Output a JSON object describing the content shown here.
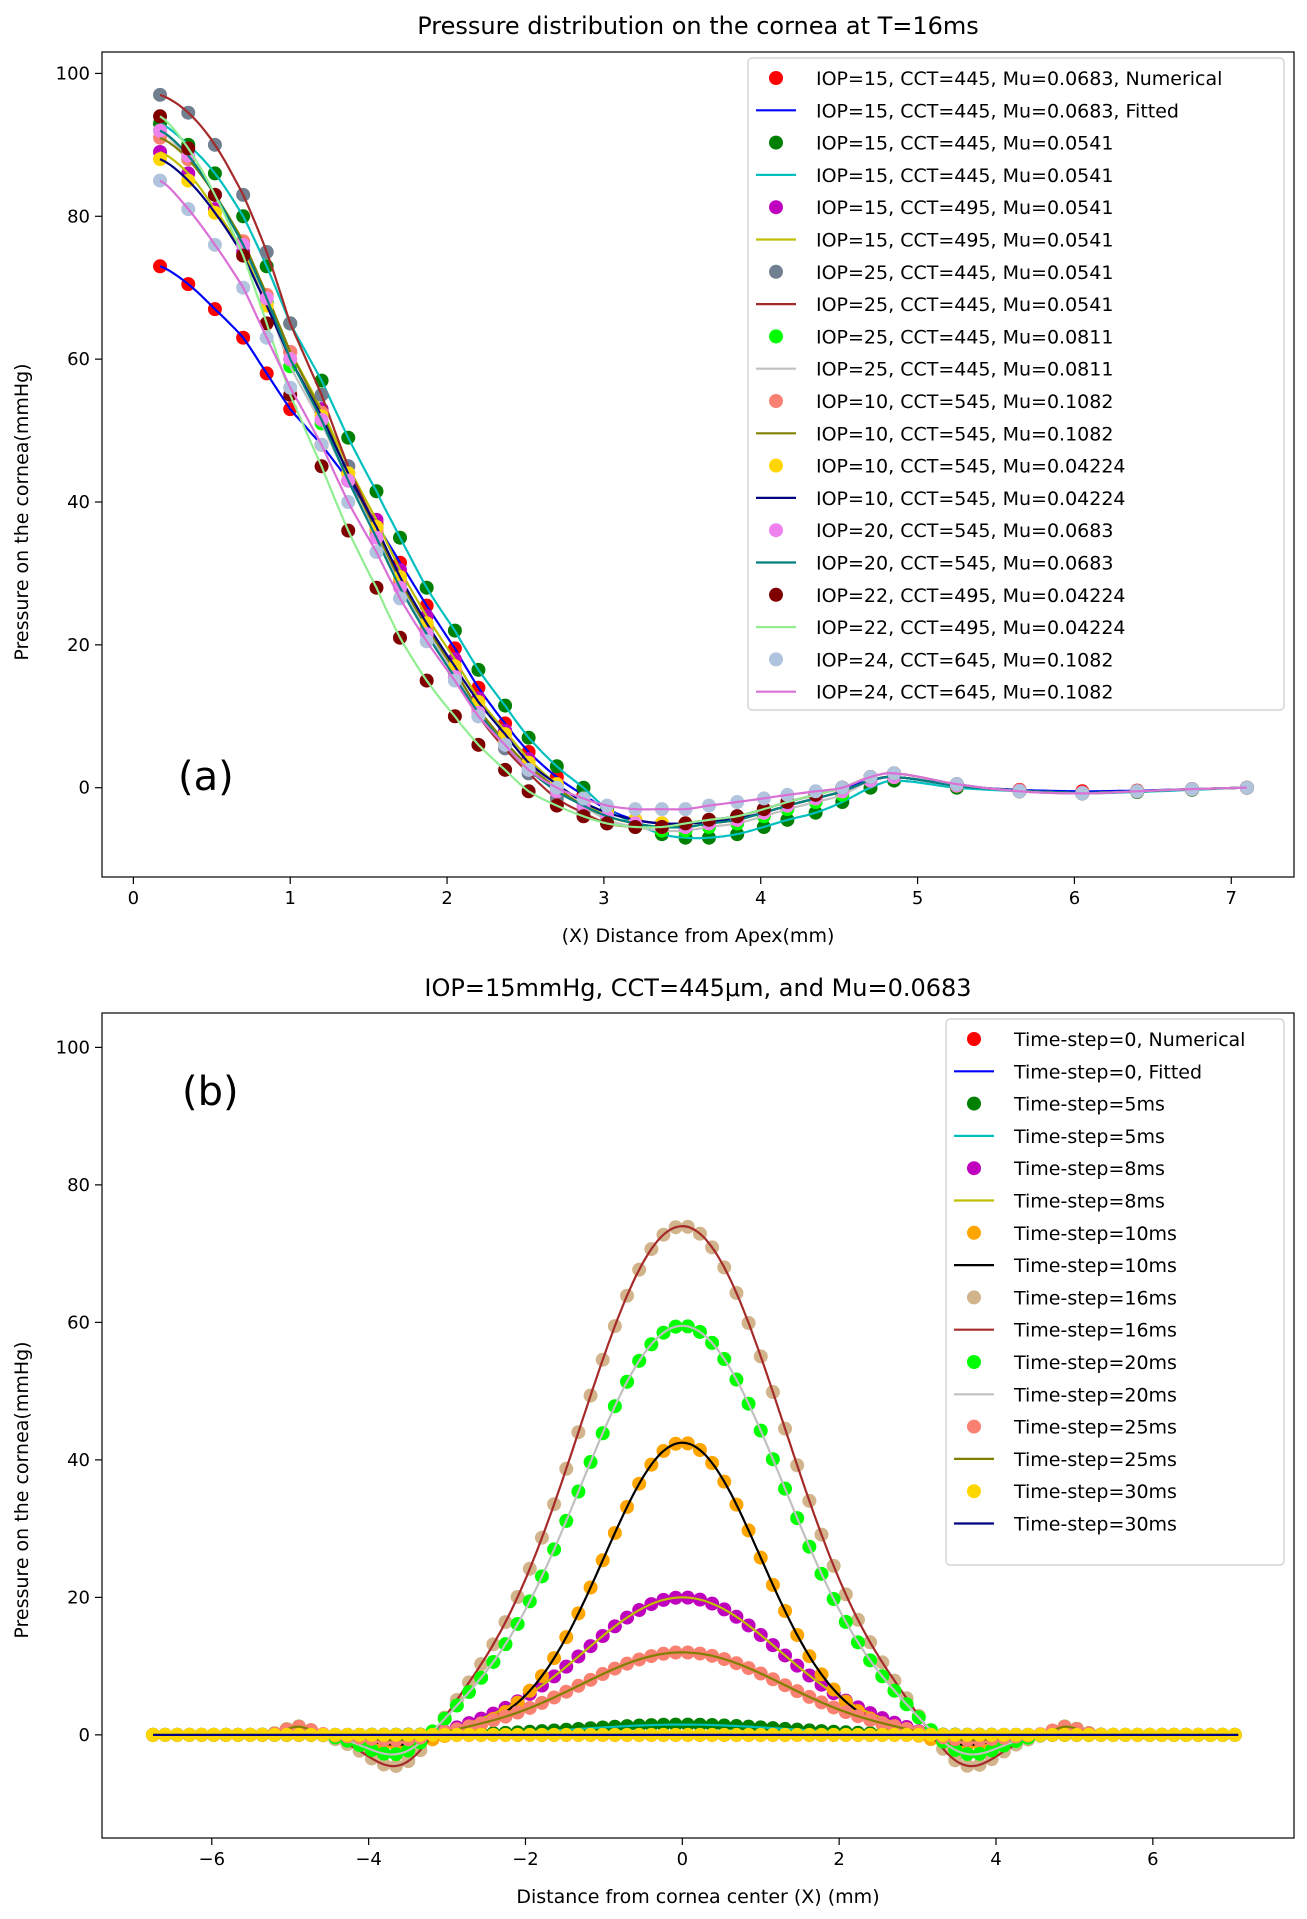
{
  "chart_data": [
    {
      "type": "scatter",
      "panel_label": "(a)",
      "title": "Pressure distribution on the cornea at T=16ms",
      "xlabel": "(X) Distance from Apex(mm)",
      "ylabel": "Pressure on the cornea(mmHg)",
      "xlim": [
        -0.2,
        7.4
      ],
      "ylim": [
        -12.5,
        103
      ],
      "xticks": [
        0,
        1,
        2,
        3,
        4,
        5,
        6,
        7
      ],
      "yticks": [
        0,
        20,
        40,
        60,
        80,
        100
      ],
      "legend_position": "top-right",
      "legend": [
        {
          "label": "IOP=15, CCT=445, Mu=0.0683, Numerical",
          "kind": "marker",
          "color": "#ff0000"
        },
        {
          "label": "IOP=15, CCT=445, Mu=0.0683, Fitted",
          "kind": "line",
          "color": "#0000ff"
        },
        {
          "label": "IOP=15, CCT=445, Mu=0.0541",
          "kind": "marker",
          "color": "#008000"
        },
        {
          "label": "IOP=15, CCT=445, Mu=0.0541",
          "kind": "line",
          "color": "#00bfbf"
        },
        {
          "label": "IOP=15, CCT=495, Mu=0.0541",
          "kind": "marker",
          "color": "#bf00bf"
        },
        {
          "label": "IOP=15, CCT=495, Mu=0.0541",
          "kind": "line",
          "color": "#bfbf00"
        },
        {
          "label": "IOP=25, CCT=445, Mu=0.0541",
          "kind": "marker",
          "color": "#708090"
        },
        {
          "label": "IOP=25, CCT=445, Mu=0.0541",
          "kind": "line",
          "color": "#a52a2a"
        },
        {
          "label": "IOP=25, CCT=445, Mu=0.0811",
          "kind": "marker",
          "color": "#00ff00"
        },
        {
          "label": "IOP=25, CCT=445, Mu=0.0811",
          "kind": "line",
          "color": "#c0c0c0"
        },
        {
          "label": "IOP=10, CCT=545, Mu=0.1082",
          "kind": "marker",
          "color": "#fa8072"
        },
        {
          "label": "IOP=10, CCT=545, Mu=0.1082",
          "kind": "line",
          "color": "#808000"
        },
        {
          "label": "IOP=10, CCT=545, Mu=0.04224",
          "kind": "marker",
          "color": "#ffd700"
        },
        {
          "label": "IOP=10, CCT=545, Mu=0.04224",
          "kind": "line",
          "color": "#000080"
        },
        {
          "label": "IOP=20, CCT=545, Mu=0.0683",
          "kind": "marker",
          "color": "#ee82ee"
        },
        {
          "label": "IOP=20, CCT=545, Mu=0.0683",
          "kind": "line",
          "color": "#008080"
        },
        {
          "label": "IOP=22, CCT=495, Mu=0.04224",
          "kind": "marker",
          "color": "#800000"
        },
        {
          "label": "IOP=22, CCT=495, Mu=0.04224",
          "kind": "line",
          "color": "#90ee90"
        },
        {
          "label": "IOP=24, CCT=645, Mu=0.1082",
          "kind": "marker",
          "color": "#b0c4de"
        },
        {
          "label": "IOP=24, CCT=645, Mu=0.1082",
          "kind": "line",
          "color": "#da70d6"
        }
      ],
      "x": [
        0.17,
        0.35,
        0.52,
        0.7,
        0.85,
        1.0,
        1.2,
        1.37,
        1.55,
        1.7,
        1.87,
        2.05,
        2.2,
        2.37,
        2.52,
        2.7,
        2.87,
        3.02,
        3.2,
        3.37,
        3.52,
        3.67,
        3.85,
        4.02,
        4.17,
        4.35,
        4.52,
        4.7,
        4.85,
        5.25,
        5.65,
        6.05,
        6.4,
        6.75,
        7.1
      ],
      "series": [
        {
          "name": "IOP=15, CCT=445, Mu=0.0683",
          "marker_color": "#ff0000",
          "line_color": "#0000ff",
          "values": [
            73.0,
            70.5,
            67.0,
            63.0,
            58.0,
            53.0,
            48.0,
            43.0,
            37.0,
            31.5,
            25.5,
            19.5,
            14.0,
            9.0,
            5.0,
            1.5,
            -1.0,
            -3.0,
            -4.5,
            -5.0,
            -5.0,
            -4.5,
            -4.0,
            -3.0,
            -2.0,
            -1.0,
            0.0,
            1.0,
            1.5,
            0.3,
            -0.3,
            -0.5,
            -0.4,
            -0.2,
            0.0
          ]
        },
        {
          "name": "IOP=15, CCT=445, Mu=0.0541",
          "marker_color": "#008000",
          "line_color": "#00bfbf",
          "values": [
            93.0,
            90.0,
            86.0,
            80.0,
            73.0,
            65.0,
            57.0,
            49.0,
            41.5,
            35.0,
            28.0,
            22.0,
            16.5,
            11.5,
            7.0,
            3.0,
            0.0,
            -3.0,
            -5.0,
            -6.5,
            -7.0,
            -7.0,
            -6.5,
            -5.5,
            -4.5,
            -3.5,
            -2.0,
            0.0,
            1.0,
            0.0,
            -0.5,
            -0.8,
            -0.6,
            -0.3,
            0.0
          ]
        },
        {
          "name": "IOP=15, CCT=495, Mu=0.0541",
          "marker_color": "#bf00bf",
          "line_color": "#bfbf00",
          "values": [
            89.0,
            86.0,
            81.0,
            75.0,
            68.0,
            61.0,
            53.0,
            45.0,
            37.5,
            30.5,
            24.0,
            18.0,
            12.5,
            8.0,
            4.0,
            0.5,
            -2.0,
            -4.0,
            -5.0,
            -5.5,
            -5.5,
            -5.0,
            -4.5,
            -3.5,
            -2.5,
            -1.5,
            -0.5,
            1.0,
            1.5,
            0.3,
            -0.4,
            -0.7,
            -0.5,
            -0.2,
            0.0
          ]
        },
        {
          "name": "IOP=25, CCT=445, Mu=0.0541",
          "marker_color": "#708090",
          "line_color": "#a52a2a",
          "values": [
            97.0,
            94.5,
            90.0,
            83.0,
            75.0,
            65.0,
            55.0,
            45.0,
            36.5,
            29.0,
            22.0,
            15.5,
            10.0,
            5.5,
            2.0,
            -1.5,
            -3.5,
            -5.0,
            -5.5,
            -5.5,
            -5.0,
            -4.5,
            -4.0,
            -3.0,
            -2.0,
            -1.0,
            0.0,
            1.5,
            2.0,
            0.5,
            -0.5,
            -0.8,
            -0.5,
            -0.2,
            0.0
          ]
        },
        {
          "name": "IOP=25, CCT=445, Mu=0.0811",
          "marker_color": "#00ff00",
          "line_color": "#c0c0c0",
          "values": [
            92.0,
            88.0,
            83.0,
            76.0,
            68.0,
            59.0,
            51.0,
            43.0,
            35.5,
            28.5,
            22.0,
            16.0,
            11.0,
            6.5,
            3.0,
            0.0,
            -2.5,
            -4.5,
            -5.5,
            -6.0,
            -6.0,
            -5.5,
            -5.0,
            -4.0,
            -3.0,
            -2.0,
            -1.0,
            1.0,
            1.5,
            0.3,
            -0.4,
            -0.7,
            -0.5,
            -0.2,
            0.0
          ]
        },
        {
          "name": "IOP=10, CCT=545, Mu=0.1082",
          "marker_color": "#fa8072",
          "line_color": "#808000",
          "values": [
            91.0,
            88.0,
            83.0,
            76.5,
            69.0,
            61.0,
            52.5,
            44.0,
            36.0,
            29.0,
            22.5,
            16.5,
            11.0,
            6.5,
            3.0,
            0.0,
            -2.5,
            -4.0,
            -5.0,
            -5.5,
            -5.5,
            -5.0,
            -4.5,
            -3.5,
            -2.5,
            -1.5,
            -0.5,
            1.0,
            1.5,
            0.3,
            -0.4,
            -0.7,
            -0.5,
            -0.2,
            0.0
          ]
        },
        {
          "name": "IOP=10, CCT=545, Mu=0.04224",
          "marker_color": "#ffd700",
          "line_color": "#000080",
          "values": [
            88.0,
            85.0,
            80.5,
            74.5,
            67.5,
            60.0,
            52.0,
            44.0,
            36.5,
            29.5,
            23.0,
            17.0,
            12.0,
            7.5,
            3.5,
            0.5,
            -2.0,
            -3.5,
            -4.5,
            -5.0,
            -5.0,
            -4.8,
            -4.3,
            -3.5,
            -2.5,
            -1.5,
            -0.5,
            1.0,
            1.5,
            0.3,
            -0.4,
            -0.7,
            -0.5,
            -0.2,
            0.0
          ]
        },
        {
          "name": "IOP=20, CCT=545, Mu=0.0683",
          "marker_color": "#ee82ee",
          "line_color": "#008080",
          "values": [
            92.0,
            88.5,
            83.0,
            76.0,
            68.5,
            60.0,
            51.5,
            43.0,
            35.0,
            28.0,
            21.5,
            15.5,
            10.5,
            6.0,
            2.5,
            -0.5,
            -2.5,
            -4.0,
            -5.0,
            -5.5,
            -5.5,
            -5.0,
            -4.5,
            -3.5,
            -2.5,
            -1.5,
            -0.5,
            1.0,
            1.5,
            0.3,
            -0.4,
            -0.7,
            -0.5,
            -0.2,
            0.0
          ]
        },
        {
          "name": "IOP=22, CCT=495, Mu=0.04224",
          "marker_color": "#800000",
          "line_color": "#90ee90",
          "values": [
            94.0,
            89.5,
            83.0,
            74.5,
            65.0,
            55.0,
            45.0,
            36.0,
            28.0,
            21.0,
            15.0,
            10.0,
            6.0,
            2.5,
            -0.5,
            -2.5,
            -4.0,
            -5.0,
            -5.5,
            -5.5,
            -5.0,
            -4.5,
            -4.0,
            -3.0,
            -2.0,
            -1.0,
            0.0,
            1.5,
            2.0,
            0.5,
            -0.5,
            -0.8,
            -0.5,
            -0.2,
            0.0
          ]
        },
        {
          "name": "IOP=24, CCT=645, Mu=0.1082",
          "marker_color": "#b0c4de",
          "line_color": "#da70d6",
          "values": [
            85.0,
            81.0,
            76.0,
            70.0,
            63.0,
            56.0,
            48.0,
            40.0,
            33.0,
            26.5,
            20.5,
            15.0,
            10.0,
            6.0,
            2.5,
            0.0,
            -1.5,
            -2.5,
            -3.0,
            -3.0,
            -3.0,
            -2.5,
            -2.0,
            -1.5,
            -1.0,
            -0.5,
            0.0,
            1.5,
            2.0,
            0.5,
            -0.5,
            -0.8,
            -0.5,
            -0.2,
            0.0
          ]
        }
      ]
    },
    {
      "type": "scatter",
      "panel_label": "(b)",
      "title": "IOP=15mmHg, CCT=445μm, and Mu=0.0683",
      "xlabel": "Distance from cornea center (X) (mm)",
      "ylabel": "Pressure on the cornea(mmHg)",
      "xlim": [
        -7.4,
        7.8
      ],
      "ylim": [
        -15,
        105
      ],
      "xticks": [
        -6,
        -4,
        -2,
        0,
        2,
        4,
        6
      ],
      "yticks": [
        0,
        20,
        40,
        60,
        80,
        100
      ],
      "legend_position": "top-right",
      "legend": [
        {
          "label": "Time-step=0, Numerical",
          "kind": "marker",
          "color": "#ff0000"
        },
        {
          "label": "Time-step=0, Fitted",
          "kind": "line",
          "color": "#0000ff"
        },
        {
          "label": "Time-step=5ms",
          "kind": "marker",
          "color": "#008000"
        },
        {
          "label": "Time-step=5ms",
          "kind": "line",
          "color": "#00bfbf"
        },
        {
          "label": "Time-step=8ms",
          "kind": "marker",
          "color": "#bf00bf"
        },
        {
          "label": "Time-step=8ms",
          "kind": "line",
          "color": "#bfbf00"
        },
        {
          "label": "Time-step=10ms",
          "kind": "marker",
          "color": "#ffa500"
        },
        {
          "label": "Time-step=10ms",
          "kind": "line",
          "color": "#000000"
        },
        {
          "label": "Time-step=16ms",
          "kind": "marker",
          "color": "#d2b48c"
        },
        {
          "label": "Time-step=16ms",
          "kind": "line",
          "color": "#a52a2a"
        },
        {
          "label": "Time-step=20ms",
          "kind": "marker",
          "color": "#00ff00"
        },
        {
          "label": "Time-step=20ms",
          "kind": "line",
          "color": "#c0c0c0"
        },
        {
          "label": "Time-step=25ms",
          "kind": "marker",
          "color": "#fa8072"
        },
        {
          "label": "Time-step=25ms",
          "kind": "line",
          "color": "#808000"
        },
        {
          "label": "Time-step=30ms",
          "kind": "marker",
          "color": "#ffd700"
        },
        {
          "label": "Time-step=30ms",
          "kind": "line",
          "color": "#000080"
        }
      ],
      "series": [
        {
          "name": "Time-step=0",
          "marker_color": "#ff0000",
          "line_color": "#0000ff",
          "amplitude": 0.0,
          "sigma": 1.25,
          "dip": 0.0
        },
        {
          "name": "Time-step=5ms",
          "marker_color": "#008000",
          "line_color": "#00bfbf",
          "amplitude": 1.5,
          "sigma": 1.25,
          "dip": 0.0
        },
        {
          "name": "Time-step=8ms",
          "marker_color": "#bf00bf",
          "line_color": "#bfbf00",
          "amplitude": 20.0,
          "sigma": 1.25,
          "dip": -1.5
        },
        {
          "name": "Time-step=10ms",
          "marker_color": "#ffa500",
          "line_color": "#000000",
          "amplitude": 42.5,
          "sigma": 1.0,
          "dip": -1.5
        },
        {
          "name": "Time-step=16ms",
          "marker_color": "#d2b48c",
          "line_color": "#a52a2a",
          "amplitude": 74.0,
          "sigma": 1.3,
          "dip": -6.0
        },
        {
          "name": "Time-step=20ms",
          "marker_color": "#00ff00",
          "line_color": "#c0c0c0",
          "amplitude": 59.5,
          "sigma": 1.3,
          "dip": -4.0
        },
        {
          "name": "Time-step=25ms",
          "marker_color": "#fa8072",
          "line_color": "#808000",
          "amplitude": 12.0,
          "sigma": 1.3,
          "dip": -1.0
        },
        {
          "name": "Time-step=30ms",
          "marker_color": "#ffd700",
          "line_color": "#000080",
          "amplitude": 0.0,
          "sigma": 1.3,
          "dip": 0.0
        }
      ]
    }
  ]
}
